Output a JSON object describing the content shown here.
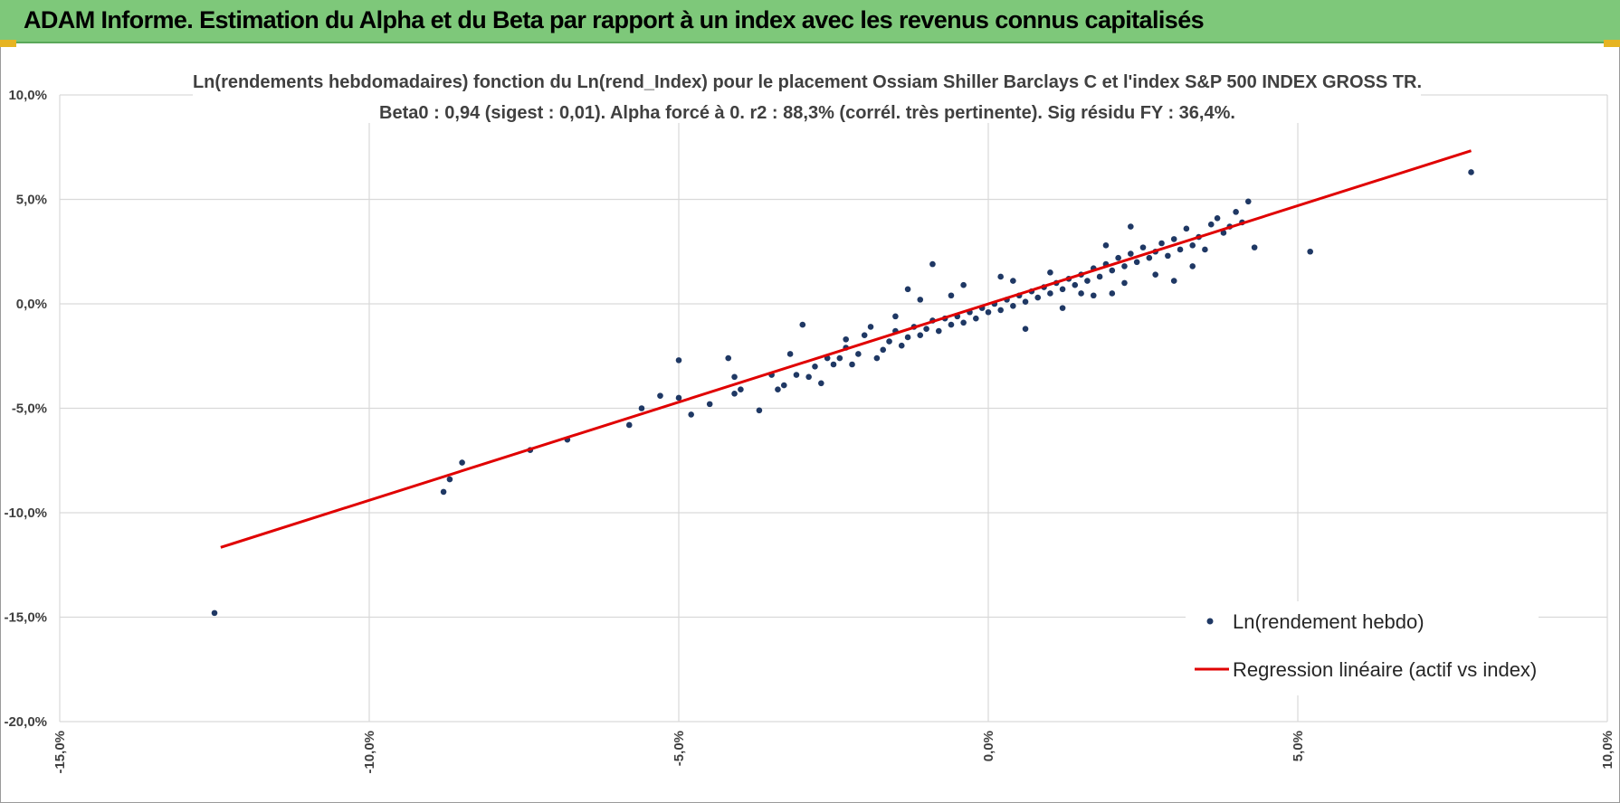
{
  "header": {
    "title": "ADAM Informe. Estimation du Alpha et du Beta par rapport à un index avec les revenus connus capitalisés"
  },
  "colors": {
    "header_bg": "#7ec87a",
    "points": "#1f3864",
    "regression": "#e00000",
    "grid": "#d9d9d9"
  },
  "chart_data": {
    "type": "scatter",
    "title": "Ln(rendements hebdomadaires) fonction du Ln(rend_Index) pour le placement Ossiam Shiller Barclays C et l'index S&P 500 INDEX GROSS TR.",
    "subtitle": "Beta0 : 0,94 (sigest : 0,01). Alpha forcé à 0. r2 : 88,3% (corrél. très pertinente). Sig résidu FY : 36,4%.",
    "xlabel": "",
    "ylabel": "",
    "xlim": [
      -0.15,
      0.1
    ],
    "ylim": [
      -0.2,
      0.1
    ],
    "x_ticks": [
      -0.15,
      -0.1,
      -0.05,
      0.0,
      0.05,
      0.1
    ],
    "x_tick_labels": [
      "-15,0%",
      "-10,0%",
      "-5,0%",
      "0,0%",
      "5,0%",
      "10,0%"
    ],
    "y_ticks": [
      0.1,
      0.05,
      0.0,
      -0.05,
      -0.1,
      -0.15,
      -0.2
    ],
    "y_tick_labels": [
      "10,0%",
      "5,0%",
      "0,0%",
      "-5,0%",
      "-10,0%",
      "-15,0%",
      "-20,0%"
    ],
    "grid": true,
    "legend_position": "bottom-right",
    "series": [
      {
        "name": "Ln(rendement hebdo)",
        "kind": "points",
        "points": [
          [
            -0.125,
            -0.148
          ],
          [
            -0.088,
            -0.09
          ],
          [
            -0.087,
            -0.084
          ],
          [
            -0.085,
            -0.076
          ],
          [
            -0.074,
            -0.07
          ],
          [
            -0.068,
            -0.065
          ],
          [
            -0.058,
            -0.058
          ],
          [
            -0.056,
            -0.05
          ],
          [
            -0.053,
            -0.044
          ],
          [
            -0.05,
            -0.027
          ],
          [
            -0.05,
            -0.045
          ],
          [
            -0.048,
            -0.053
          ],
          [
            -0.045,
            -0.048
          ],
          [
            -0.042,
            -0.026
          ],
          [
            -0.041,
            -0.035
          ],
          [
            -0.041,
            -0.043
          ],
          [
            -0.04,
            -0.041
          ],
          [
            -0.037,
            -0.051
          ],
          [
            -0.035,
            -0.034
          ],
          [
            -0.034,
            -0.041
          ],
          [
            -0.033,
            -0.039
          ],
          [
            -0.032,
            -0.024
          ],
          [
            -0.031,
            -0.034
          ],
          [
            -0.03,
            -0.01
          ],
          [
            -0.029,
            -0.035
          ],
          [
            -0.028,
            -0.03
          ],
          [
            -0.027,
            -0.038
          ],
          [
            -0.026,
            -0.026
          ],
          [
            -0.025,
            -0.029
          ],
          [
            -0.024,
            -0.026
          ],
          [
            -0.023,
            -0.017
          ],
          [
            -0.023,
            -0.021
          ],
          [
            -0.022,
            -0.029
          ],
          [
            -0.021,
            -0.024
          ],
          [
            -0.02,
            -0.015
          ],
          [
            -0.019,
            -0.011
          ],
          [
            -0.018,
            -0.026
          ],
          [
            -0.017,
            -0.022
          ],
          [
            -0.016,
            -0.018
          ],
          [
            -0.015,
            -0.013
          ],
          [
            -0.014,
            -0.02
          ],
          [
            -0.013,
            -0.016
          ],
          [
            -0.012,
            -0.011
          ],
          [
            -0.011,
            -0.015
          ],
          [
            -0.01,
            -0.012
          ],
          [
            -0.009,
            -0.008
          ],
          [
            -0.008,
            -0.013
          ],
          [
            -0.007,
            -0.007
          ],
          [
            -0.006,
            -0.01
          ],
          [
            -0.005,
            -0.006
          ],
          [
            -0.004,
            -0.009
          ],
          [
            -0.003,
            -0.004
          ],
          [
            -0.002,
            -0.007
          ],
          [
            -0.001,
            -0.002
          ],
          [
            0.0,
            -0.004
          ],
          [
            0.001,
            0.0
          ],
          [
            0.002,
            -0.003
          ],
          [
            0.003,
            0.002
          ],
          [
            0.004,
            -0.001
          ],
          [
            0.005,
            0.004
          ],
          [
            0.006,
            0.001
          ],
          [
            0.007,
            0.006
          ],
          [
            0.008,
            0.003
          ],
          [
            0.009,
            0.008
          ],
          [
            0.01,
            0.005
          ],
          [
            0.011,
            0.01
          ],
          [
            0.012,
            0.007
          ],
          [
            0.013,
            0.012
          ],
          [
            0.014,
            0.009
          ],
          [
            0.015,
            0.014
          ],
          [
            0.016,
            0.011
          ],
          [
            0.017,
            0.017
          ],
          [
            0.018,
            0.013
          ],
          [
            0.019,
            0.019
          ],
          [
            0.02,
            0.016
          ],
          [
            0.021,
            0.022
          ],
          [
            0.022,
            0.018
          ],
          [
            0.023,
            0.024
          ],
          [
            0.024,
            0.02
          ],
          [
            0.025,
            0.027
          ],
          [
            0.026,
            0.022
          ],
          [
            0.027,
            0.025
          ],
          [
            0.028,
            0.029
          ],
          [
            0.029,
            0.023
          ],
          [
            0.03,
            0.031
          ],
          [
            0.031,
            0.026
          ],
          [
            0.032,
            0.036
          ],
          [
            0.033,
            0.028
          ],
          [
            0.034,
            0.032
          ],
          [
            0.035,
            0.026
          ],
          [
            0.036,
            0.038
          ],
          [
            0.037,
            0.041
          ],
          [
            0.038,
            0.034
          ],
          [
            0.039,
            0.037
          ],
          [
            0.04,
            0.044
          ],
          [
            0.041,
            0.039
          ],
          [
            0.042,
            0.049
          ],
          [
            0.043,
            0.027
          ],
          [
            0.052,
            0.025
          ],
          [
            0.078,
            0.063
          ],
          [
            -0.009,
            0.019
          ],
          [
            -0.004,
            0.009
          ],
          [
            0.006,
            -0.012
          ],
          [
            0.012,
            -0.002
          ],
          [
            0.019,
            0.028
          ],
          [
            0.023,
            0.037
          ],
          [
            0.03,
            0.011
          ],
          [
            0.033,
            0.018
          ],
          [
            -0.015,
            -0.006
          ],
          [
            -0.013,
            0.007
          ],
          [
            -0.011,
            0.002
          ],
          [
            -0.006,
            0.004
          ],
          [
            0.002,
            0.013
          ],
          [
            0.004,
            0.011
          ],
          [
            0.01,
            0.015
          ],
          [
            0.015,
            0.005
          ],
          [
            0.02,
            0.005
          ],
          [
            0.027,
            0.014
          ],
          [
            0.022,
            0.01
          ],
          [
            0.017,
            0.004
          ]
        ]
      },
      {
        "name": "Regression linéaire (actif vs index)",
        "kind": "line",
        "points": [
          [
            -0.124,
            -0.1166
          ],
          [
            0.078,
            0.0733
          ]
        ]
      }
    ]
  }
}
